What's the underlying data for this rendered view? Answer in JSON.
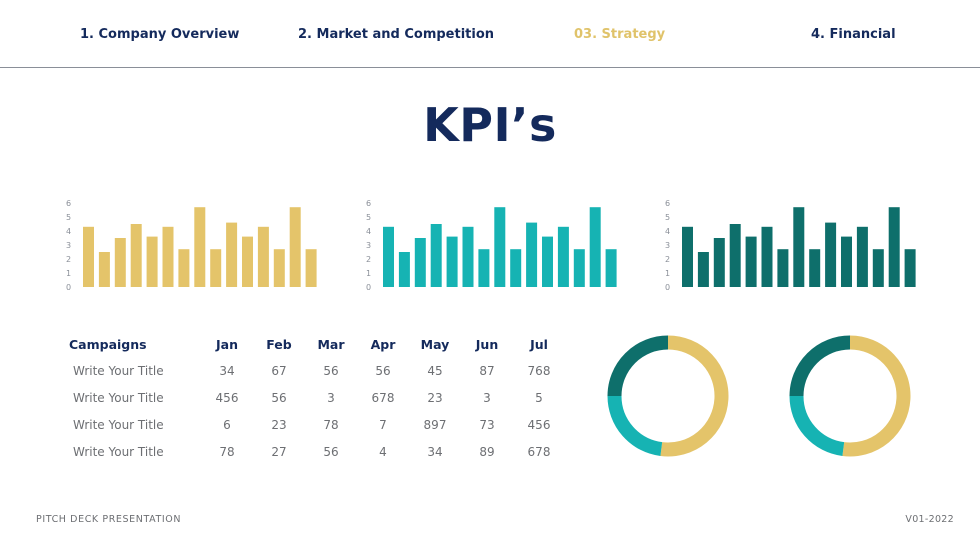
{
  "nav": {
    "items": [
      {
        "label": "1. Company Overview",
        "active": false
      },
      {
        "label": "2. Market and Competition",
        "active": false
      },
      {
        "label": "03. Strategy",
        "active": true
      },
      {
        "label": "4. Financial",
        "active": false
      }
    ]
  },
  "title": "KPI’s",
  "colors": {
    "navy": "#142a5c",
    "gold": "#e4c46a",
    "teal": "#16b3b3",
    "dark_teal": "#0e6f6b"
  },
  "chart_data": [
    {
      "type": "bar",
      "color": "#e4c46a",
      "ylim": [
        0,
        6
      ],
      "yticks": [
        "0",
        "1",
        "2",
        "3",
        "4",
        "5",
        "6"
      ],
      "values": [
        4.3,
        2.5,
        3.5,
        4.5,
        3.6,
        4.3,
        2.7,
        5.7,
        2.7,
        4.6,
        3.6,
        4.3,
        2.7,
        5.7,
        2.7
      ]
    },
    {
      "type": "bar",
      "color": "#16b3b3",
      "ylim": [
        0,
        6
      ],
      "yticks": [
        "0",
        "1",
        "2",
        "3",
        "4",
        "5",
        "6"
      ],
      "values": [
        4.3,
        2.5,
        3.5,
        4.5,
        3.6,
        4.3,
        2.7,
        5.7,
        2.7,
        4.6,
        3.6,
        4.3,
        2.7,
        5.7,
        2.7
      ]
    },
    {
      "type": "bar",
      "color": "#0e6f6b",
      "ylim": [
        0,
        6
      ],
      "yticks": [
        "0",
        "1",
        "2",
        "3",
        "4",
        "5",
        "6"
      ],
      "values": [
        4.3,
        2.5,
        3.5,
        4.5,
        3.6,
        4.3,
        2.7,
        5.7,
        2.7,
        4.6,
        3.6,
        4.3,
        2.7,
        5.7,
        2.7
      ]
    },
    {
      "type": "pie",
      "donut": true,
      "slices": [
        {
          "value": 52,
          "color": "#e4c46a"
        },
        {
          "value": 23,
          "color": "#16b3b3"
        },
        {
          "value": 25,
          "color": "#0e6f6b"
        }
      ]
    },
    {
      "type": "pie",
      "donut": true,
      "slices": [
        {
          "value": 52,
          "color": "#e4c46a"
        },
        {
          "value": 23,
          "color": "#16b3b3"
        },
        {
          "value": 25,
          "color": "#0e6f6b"
        }
      ]
    }
  ],
  "table": {
    "header": "Campaigns",
    "months": [
      "Jan",
      "Feb",
      "Mar",
      "Apr",
      "May",
      "Jun",
      "Jul"
    ],
    "rows": [
      {
        "label": "Write Your Title",
        "values": [
          "34",
          "67",
          "56",
          "56",
          "45",
          "87",
          "768"
        ]
      },
      {
        "label": "Write Your Title",
        "values": [
          "456",
          "56",
          "3",
          "678",
          "23",
          "3",
          "5"
        ]
      },
      {
        "label": "Write Your Title",
        "values": [
          "6",
          "23",
          "78",
          "7",
          "897",
          "73",
          "456"
        ]
      },
      {
        "label": "Write Your Title",
        "values": [
          "78",
          "27",
          "56",
          "4",
          "34",
          "89",
          "678"
        ]
      }
    ]
  },
  "footer": {
    "left": "PITCH DECK PRESENTATION",
    "right": "V01-2022"
  }
}
